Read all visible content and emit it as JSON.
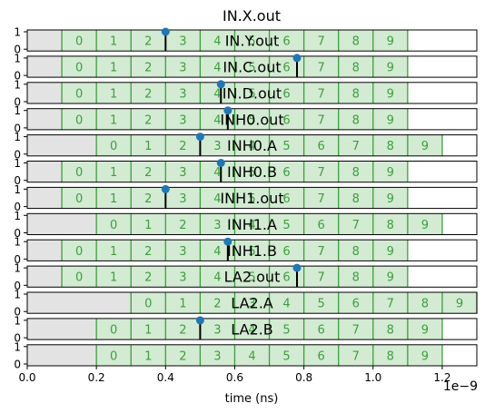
{
  "chart_data": {
    "type": "timeline",
    "title": "IN.X.out",
    "xlabel": "time (ns)",
    "x_scale_label": "1e−9",
    "xlim": [
      0,
      1.3
    ],
    "x_ticks": [
      0.0,
      0.2,
      0.4,
      0.6,
      0.8,
      1.0,
      1.2
    ],
    "x_tick_labels": [
      "0.0",
      "0.2",
      "0.4",
      "0.6",
      "0.8",
      "1.0",
      "1.2"
    ],
    "y_ticks": [
      0,
      1
    ],
    "y_tick_labels": [
      "0",
      "1"
    ],
    "colors": {
      "idle": "#e3e3e3",
      "slot": "#d3ead3",
      "slot_border": "#3ca03c",
      "slot_text": "#3ca03c",
      "marker": "#1f77b4",
      "stem": "#000000"
    },
    "rows": [
      {
        "label": "IN.Y.out",
        "start": 0.1,
        "slot_width": 0.1,
        "slots": [
          "0",
          "1",
          "2",
          "3",
          "4",
          "5",
          "6",
          "7",
          "8",
          "9"
        ],
        "event_x": 0.4
      },
      {
        "label": "IN.C.out",
        "start": 0.1,
        "slot_width": 0.1,
        "slots": [
          "0",
          "1",
          "2",
          "3",
          "4",
          "5",
          "6",
          "7",
          "8",
          "9"
        ],
        "event_x": 0.78
      },
      {
        "label": "IN.D.out",
        "start": 0.1,
        "slot_width": 0.1,
        "slots": [
          "0",
          "1",
          "2",
          "3",
          "4",
          "5",
          "6",
          "7",
          "8",
          "9"
        ],
        "event_x": 0.56
      },
      {
        "label": "INH0.out",
        "start": 0.1,
        "slot_width": 0.1,
        "slots": [
          "0",
          "1",
          "2",
          "3",
          "4",
          "5",
          "6",
          "7",
          "8",
          "9"
        ],
        "event_x": 0.58
      },
      {
        "label": "INH0.A",
        "start": 0.2,
        "slot_width": 0.1,
        "slots": [
          "0",
          "1",
          "2",
          "3",
          "4",
          "5",
          "6",
          "7",
          "8",
          "9"
        ],
        "event_x": 0.5
      },
      {
        "label": "INH0.B",
        "start": 0.1,
        "slot_width": 0.1,
        "slots": [
          "0",
          "1",
          "2",
          "3",
          "4",
          "5",
          "6",
          "7",
          "8",
          "9"
        ],
        "event_x": 0.56
      },
      {
        "label": "INH1.out",
        "start": 0.1,
        "slot_width": 0.1,
        "slots": [
          "0",
          "1",
          "2",
          "3",
          "4",
          "5",
          "6",
          "7",
          "8",
          "9"
        ],
        "event_x": 0.4
      },
      {
        "label": "INH1.A",
        "start": 0.2,
        "slot_width": 0.1,
        "slots": [
          "0",
          "1",
          "2",
          "3",
          "4",
          "5",
          "6",
          "7",
          "8",
          "9"
        ],
        "event_x": null
      },
      {
        "label": "INH1.B",
        "start": 0.1,
        "slot_width": 0.1,
        "slots": [
          "0",
          "1",
          "2",
          "3",
          "4",
          "5",
          "6",
          "7",
          "8",
          "9"
        ],
        "event_x": 0.58
      },
      {
        "label": "LA2.out",
        "start": 0.1,
        "slot_width": 0.1,
        "slots": [
          "0",
          "1",
          "2",
          "3",
          "4",
          "5",
          "6",
          "7",
          "8",
          "9"
        ],
        "event_x": 0.78
      },
      {
        "label": "LA2.A",
        "start": 0.3,
        "slot_width": 0.1,
        "slots": [
          "0",
          "1",
          "2",
          "3",
          "4",
          "5",
          "6",
          "7",
          "8",
          "9"
        ],
        "event_x": null
      },
      {
        "label": "LA2.B",
        "start": 0.2,
        "slot_width": 0.1,
        "slots": [
          "0",
          "1",
          "2",
          "3",
          "4",
          "5",
          "6",
          "7",
          "8",
          "9"
        ],
        "event_x": 0.5
      },
      {
        "label": "",
        "start": 0.2,
        "slot_width": 0.1,
        "slots": [
          "0",
          "1",
          "2",
          "3",
          "4",
          "5",
          "6",
          "7",
          "8",
          "9"
        ],
        "event_x": null
      }
    ]
  }
}
